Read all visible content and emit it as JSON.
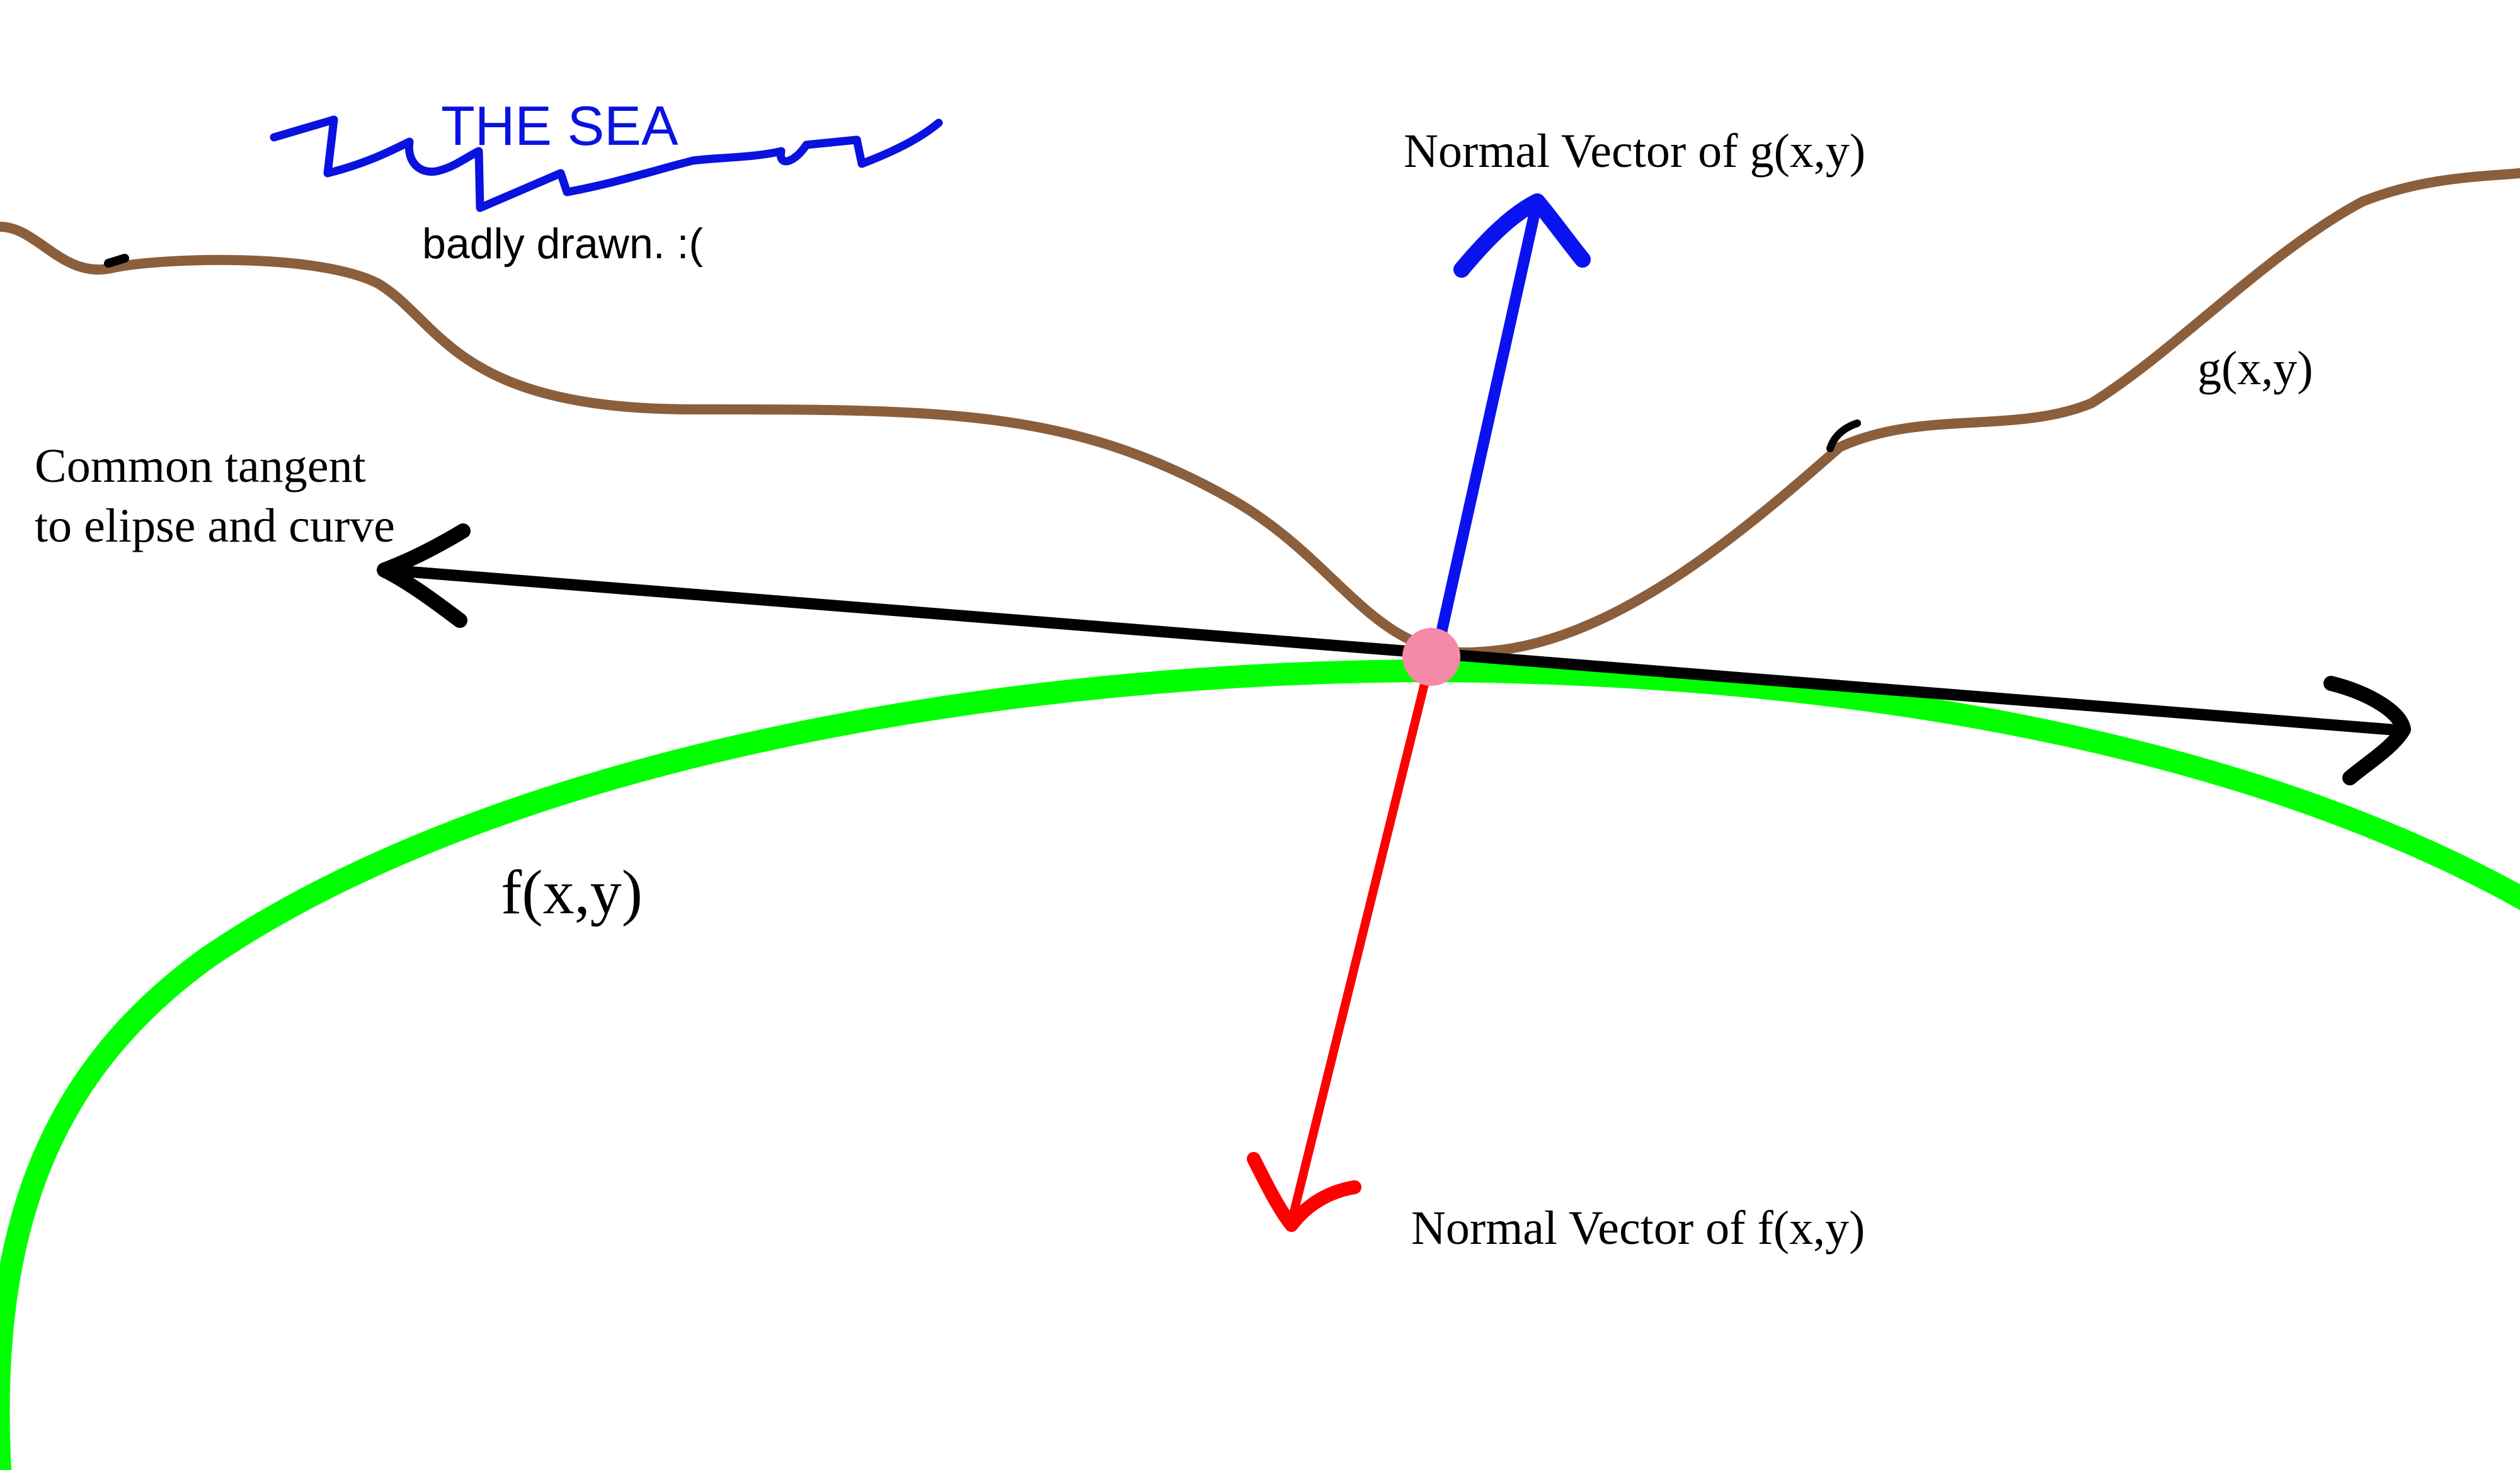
{
  "labels": {
    "sea_title": "THE SEA",
    "sea_caption": "badly drawn. :(",
    "normal_g": "Normal Vector of g(x,y)",
    "normal_f": "Normal Vector of f(x,y)",
    "curve_g": "g(x,y)",
    "ellipse_f": "f(x,y)",
    "tangent_line1": "Common tangent",
    "tangent_line2": "to elipse and curve"
  },
  "colors": {
    "background": "#ffffff",
    "sea": "#0a12e0",
    "curve_g": "#8b5e3c",
    "ellipse_f": "#00ff00",
    "normal_g": "#0a12f0",
    "normal_f": "#ff0000",
    "tangent": "#000000",
    "contact_point": "#f48aa8",
    "text": "#000000"
  }
}
